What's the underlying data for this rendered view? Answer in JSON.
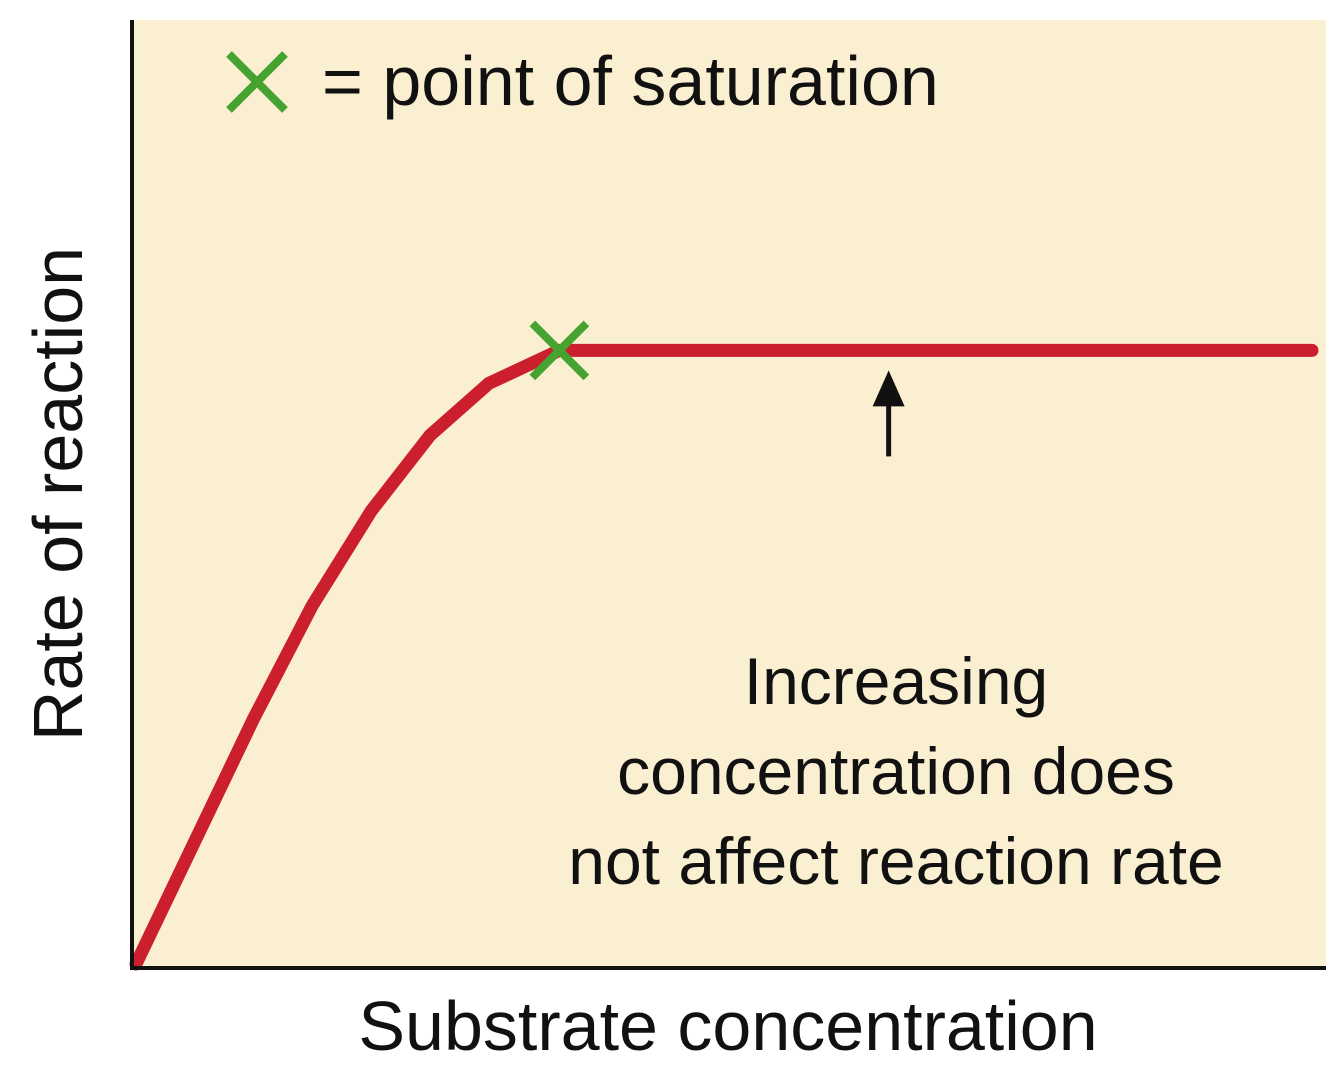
{
  "chart_data": {
    "type": "line",
    "title": "",
    "xlabel": "Substrate concentration",
    "ylabel": "Rate of reaction",
    "xticks": [],
    "yticks": [],
    "grid": false,
    "background_color": "#fbefd2",
    "legend": {
      "position": "top-left",
      "marker": "x",
      "marker_color": "#46a330",
      "label": "= point of saturation"
    },
    "series": [
      {
        "color": "#cc1f2e",
        "points": [
          [
            0.0,
            0.0
          ],
          [
            0.05,
            0.13
          ],
          [
            0.1,
            0.26
          ],
          [
            0.15,
            0.38
          ],
          [
            0.2,
            0.48
          ],
          [
            0.25,
            0.56
          ],
          [
            0.3,
            0.615
          ],
          [
            0.36,
            0.65
          ],
          [
            0.45,
            0.65
          ],
          [
            0.55,
            0.65
          ],
          [
            0.65,
            0.65
          ],
          [
            0.75,
            0.65
          ],
          [
            0.85,
            0.65
          ],
          [
            0.95,
            0.65
          ],
          [
            1.0,
            0.65
          ]
        ]
      }
    ],
    "saturation_point": {
      "x": 0.36,
      "y": 0.65
    },
    "annotation": {
      "lines": [
        "Increasing",
        "concentration does",
        "not affect reaction rate"
      ],
      "points_to": {
        "x": 0.64,
        "y": 0.65
      }
    }
  }
}
